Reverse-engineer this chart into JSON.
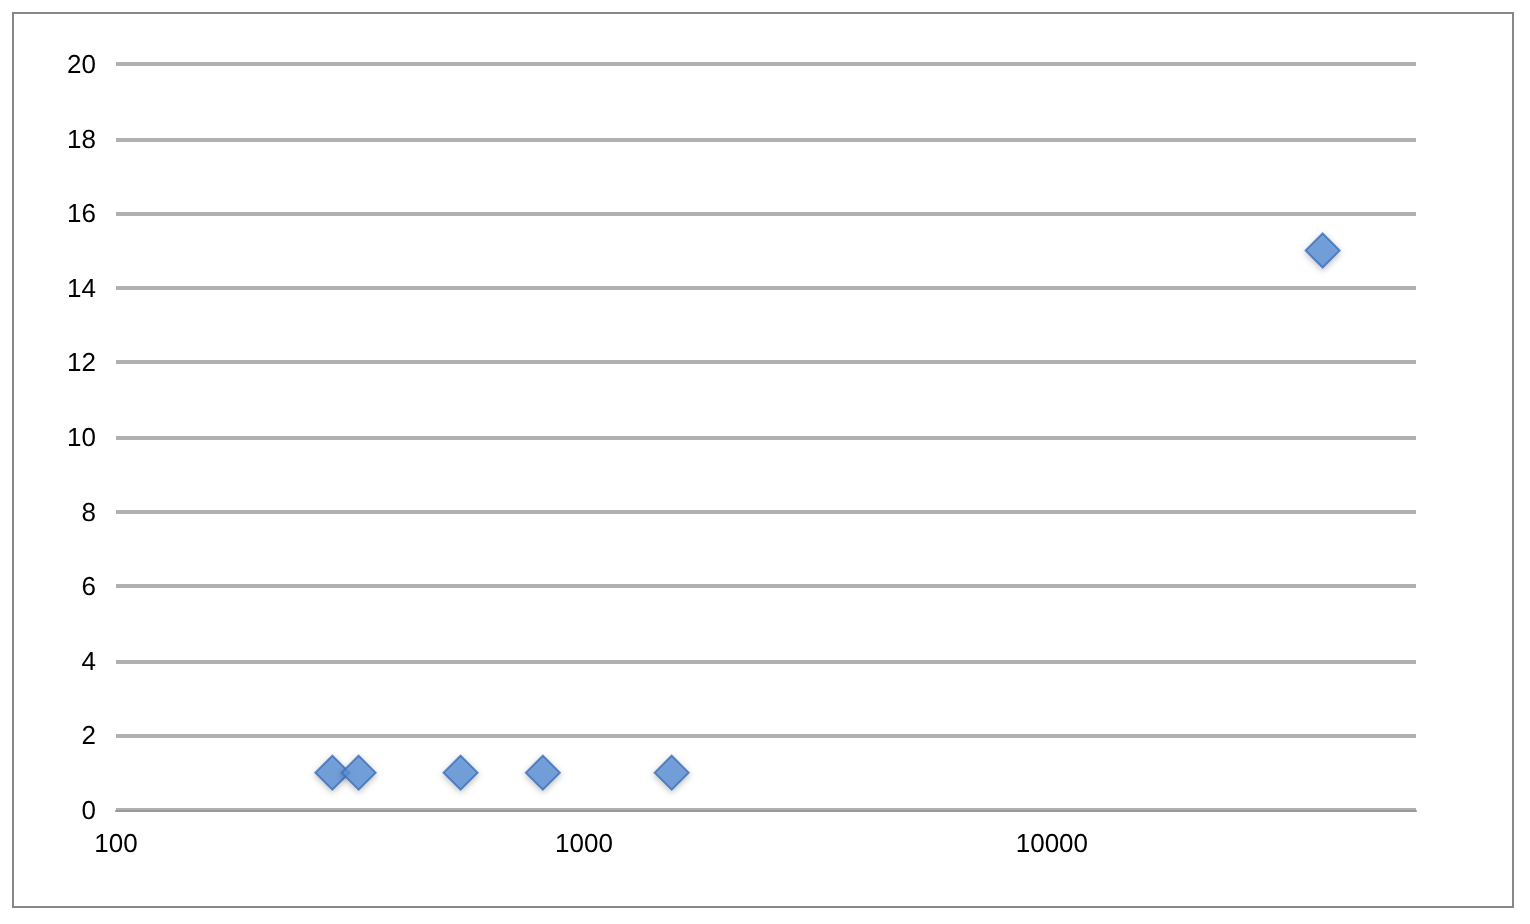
{
  "chart_data": {
    "type": "scatter",
    "x": [
      290,
      330,
      545,
      817,
      1540,
      37900
    ],
    "values": [
      1,
      1,
      1,
      1,
      1,
      15
    ],
    "color": "#5b8fd6",
    "marker": "diamond",
    "log": "x",
    "xlim": [
      100,
      60000
    ],
    "xticks": [
      100,
      1000,
      10000
    ],
    "ylim": [
      0,
      20
    ],
    "yticks": [
      0,
      2,
      4,
      6,
      8,
      10,
      12,
      14,
      16,
      18,
      20
    ],
    "grid": "y"
  }
}
